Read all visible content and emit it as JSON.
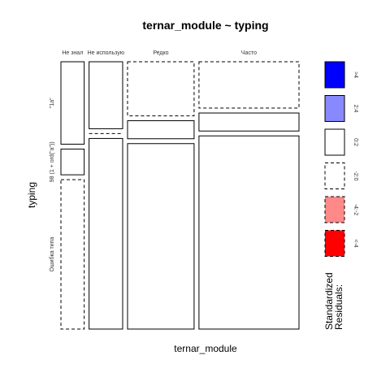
{
  "chart_data": {
    "type": "mosaic",
    "title": "ternar_module ~ typing",
    "xlabel": "ternar_module",
    "ylabel": "typing",
    "columns": [
      "Не знал",
      "Не использую",
      "Редко",
      "Часто"
    ],
    "column_widths": [
      0.0759,
      0.1097,
      0.2173,
      0.3265
    ],
    "rows": [
      "\"1a\"",
      "98 (1 + ord(\"a\"))",
      "Ошибка типа"
    ],
    "cells": [
      [
        {
          "share": 0.32,
          "residual_class": "0:2"
        },
        {
          "share": 0.1,
          "residual_class": "0:2"
        },
        {
          "share": 0.58,
          "residual_class": "-2:0"
        }
      ],
      [
        {
          "share": 0.26,
          "residual_class": "0:2"
        },
        {
          "share": 0.0,
          "residual_class": "-2:0"
        },
        {
          "share": 0.74,
          "residual_class": "0:2"
        }
      ],
      [
        {
          "share": 0.21,
          "residual_class": "-2:0"
        },
        {
          "share": 0.07,
          "residual_class": "0:2"
        },
        {
          "share": 0.72,
          "residual_class": "0:2"
        }
      ],
      [
        {
          "share": 0.18,
          "residual_class": "-2:0"
        },
        {
          "share": 0.07,
          "residual_class": "0:2"
        },
        {
          "share": 0.75,
          "residual_class": "0:2"
        }
      ]
    ],
    "legend": {
      "title_lines": [
        "Standardized",
        "Residuals:"
      ],
      "placement": "right",
      "entries": [
        {
          "label": ">4",
          "fill": "#0000ff",
          "dashed": false
        },
        {
          "label": "2:4",
          "fill": "#8888ff",
          "dashed": false
        },
        {
          "label": "0:2",
          "fill": "#ffffff",
          "dashed": false
        },
        {
          "label": "-2:0",
          "fill": "#ffffff",
          "dashed": true
        },
        {
          "label": "-4:-2",
          "fill": "#ff8888",
          "dashed": true
        },
        {
          "label": "<-4",
          "fill": "#ff0000",
          "dashed": true
        }
      ]
    }
  }
}
